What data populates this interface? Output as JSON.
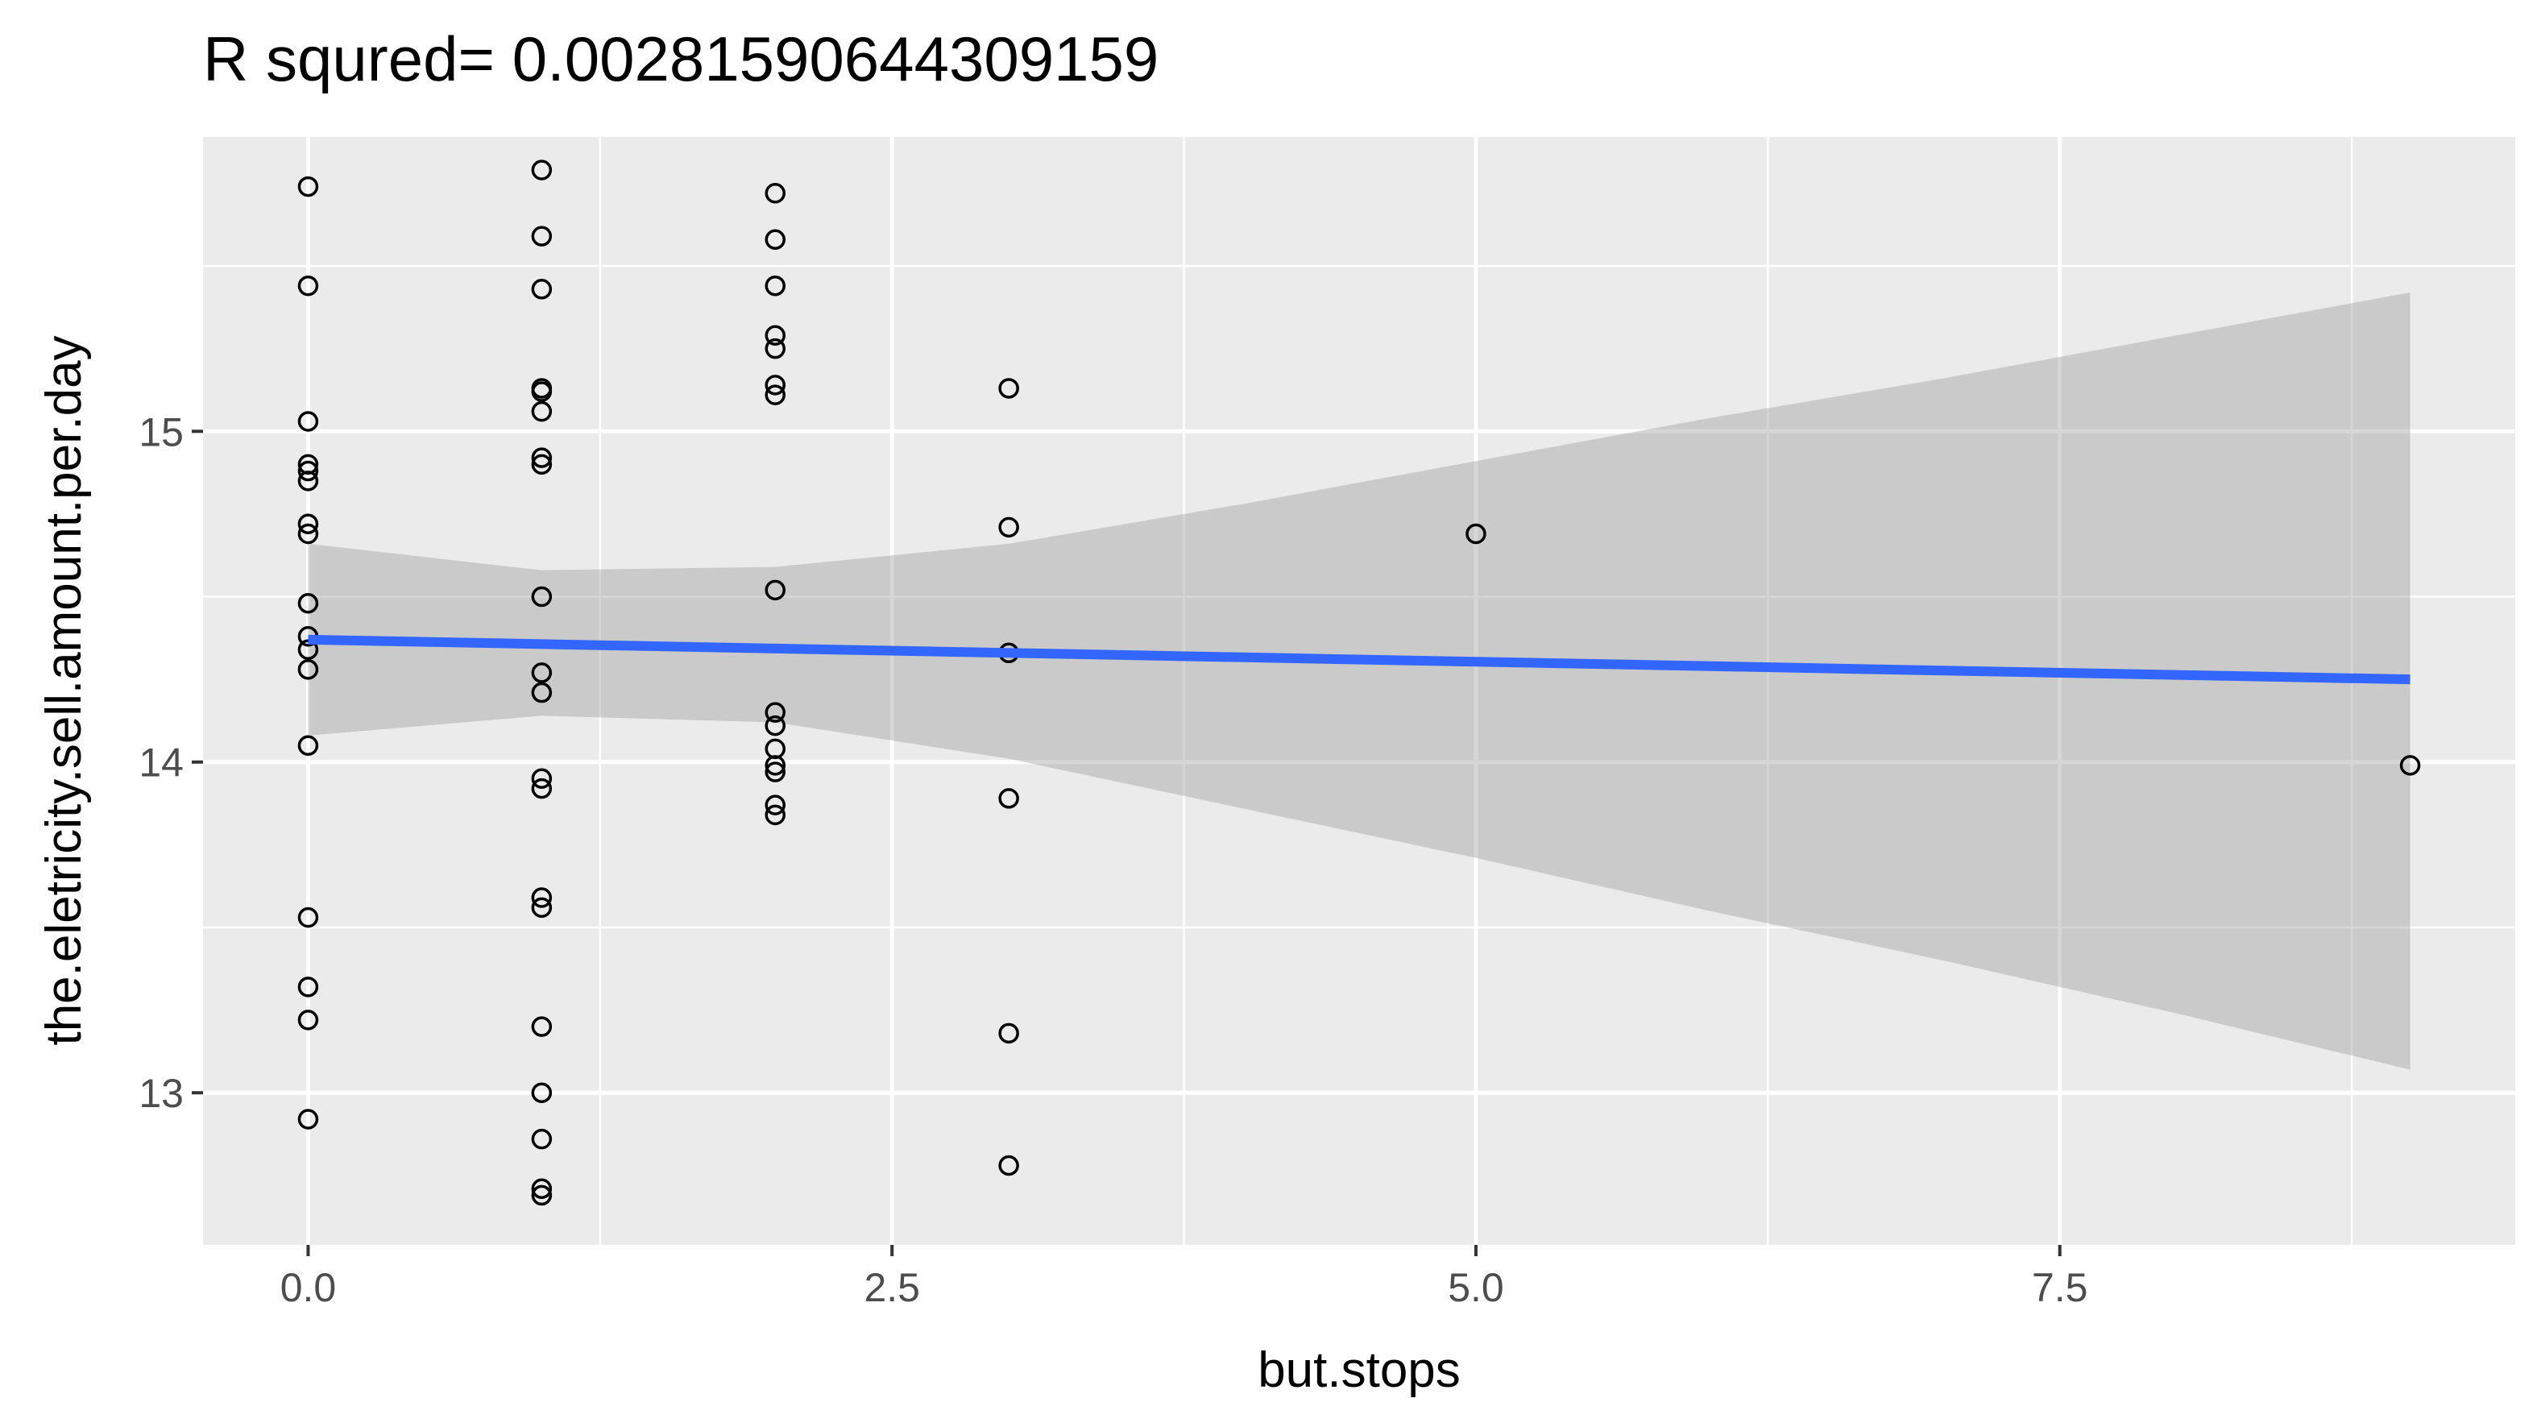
{
  "chart_data": {
    "type": "scatter",
    "title": "R squred= 0.00281590644309159",
    "xlabel": "but.stops",
    "ylabel": "the.eletricity.sell.amount.per.day",
    "xlim": [
      -0.45,
      9.45
    ],
    "ylim": [
      12.54,
      15.89
    ],
    "x_ticks": [
      0.0,
      2.5,
      5.0,
      7.5
    ],
    "x_tick_labels": [
      "0.0",
      "2.5",
      "5.0",
      "7.5"
    ],
    "y_ticks": [
      13,
      14,
      15
    ],
    "y_tick_labels": [
      "13",
      "14",
      "15"
    ],
    "grid": true,
    "legend": "none",
    "points": [
      {
        "x": 0,
        "y": 15.74
      },
      {
        "x": 0,
        "y": 15.44
      },
      {
        "x": 0,
        "y": 15.03
      },
      {
        "x": 0,
        "y": 14.9
      },
      {
        "x": 0,
        "y": 14.88
      },
      {
        "x": 0,
        "y": 14.85
      },
      {
        "x": 0,
        "y": 14.72
      },
      {
        "x": 0,
        "y": 14.69
      },
      {
        "x": 0,
        "y": 14.48
      },
      {
        "x": 0,
        "y": 14.38
      },
      {
        "x": 0,
        "y": 14.34
      },
      {
        "x": 0,
        "y": 14.28
      },
      {
        "x": 0,
        "y": 14.05
      },
      {
        "x": 0,
        "y": 13.53
      },
      {
        "x": 0,
        "y": 13.32
      },
      {
        "x": 0,
        "y": 13.22
      },
      {
        "x": 0,
        "y": 12.92
      },
      {
        "x": 1,
        "y": 15.79
      },
      {
        "x": 1,
        "y": 15.59
      },
      {
        "x": 1,
        "y": 15.43
      },
      {
        "x": 1,
        "y": 15.13
      },
      {
        "x": 1,
        "y": 15.12
      },
      {
        "x": 1,
        "y": 15.06
      },
      {
        "x": 1,
        "y": 14.92
      },
      {
        "x": 1,
        "y": 14.9
      },
      {
        "x": 1,
        "y": 14.5
      },
      {
        "x": 1,
        "y": 14.27
      },
      {
        "x": 1,
        "y": 14.21
      },
      {
        "x": 1,
        "y": 13.95
      },
      {
        "x": 1,
        "y": 13.92
      },
      {
        "x": 1,
        "y": 13.59
      },
      {
        "x": 1,
        "y": 13.56
      },
      {
        "x": 1,
        "y": 13.2
      },
      {
        "x": 1,
        "y": 13.0
      },
      {
        "x": 1,
        "y": 12.86
      },
      {
        "x": 1,
        "y": 12.71
      },
      {
        "x": 1,
        "y": 12.69
      },
      {
        "x": 2,
        "y": 15.72
      },
      {
        "x": 2,
        "y": 15.58
      },
      {
        "x": 2,
        "y": 15.44
      },
      {
        "x": 2,
        "y": 15.29
      },
      {
        "x": 2,
        "y": 15.25
      },
      {
        "x": 2,
        "y": 15.14
      },
      {
        "x": 2,
        "y": 15.11
      },
      {
        "x": 2,
        "y": 14.52
      },
      {
        "x": 2,
        "y": 14.15
      },
      {
        "x": 2,
        "y": 14.11
      },
      {
        "x": 2,
        "y": 14.04
      },
      {
        "x": 2,
        "y": 13.99
      },
      {
        "x": 2,
        "y": 13.97
      },
      {
        "x": 2,
        "y": 13.87
      },
      {
        "x": 2,
        "y": 13.84
      },
      {
        "x": 3,
        "y": 15.13
      },
      {
        "x": 3,
        "y": 14.71
      },
      {
        "x": 3,
        "y": 14.33
      },
      {
        "x": 3,
        "y": 13.89
      },
      {
        "x": 3,
        "y": 13.18
      },
      {
        "x": 3,
        "y": 12.78
      },
      {
        "x": 5,
        "y": 14.69
      },
      {
        "x": 9,
        "y": 13.99
      }
    ],
    "fit_line": {
      "method": "lm",
      "x": [
        0,
        9
      ],
      "y": [
        14.37,
        14.25
      ],
      "color": "#3366FF",
      "ci_lower": [
        {
          "x": 0,
          "y": 14.08
        },
        {
          "x": 1,
          "y": 14.14
        },
        {
          "x": 2,
          "y": 14.12
        },
        {
          "x": 3,
          "y": 14.01
        },
        {
          "x": 4,
          "y": 13.86
        },
        {
          "x": 5,
          "y": 13.71
        },
        {
          "x": 6,
          "y": 13.55
        },
        {
          "x": 7,
          "y": 13.4
        },
        {
          "x": 8,
          "y": 13.24
        },
        {
          "x": 9,
          "y": 13.07
        }
      ],
      "ci_upper": [
        {
          "x": 0,
          "y": 14.66
        },
        {
          "x": 1,
          "y": 14.58
        },
        {
          "x": 2,
          "y": 14.59
        },
        {
          "x": 3,
          "y": 14.66
        },
        {
          "x": 4,
          "y": 14.78
        },
        {
          "x": 5,
          "y": 14.91
        },
        {
          "x": 6,
          "y": 15.04
        },
        {
          "x": 7,
          "y": 15.16
        },
        {
          "x": 8,
          "y": 15.29
        },
        {
          "x": 9,
          "y": 15.42
        }
      ],
      "ci_color": "#999999"
    },
    "colors": {
      "panel_background": "#EBEBEB",
      "grid_major": "#FFFFFF",
      "point_stroke": "#000000"
    }
  }
}
